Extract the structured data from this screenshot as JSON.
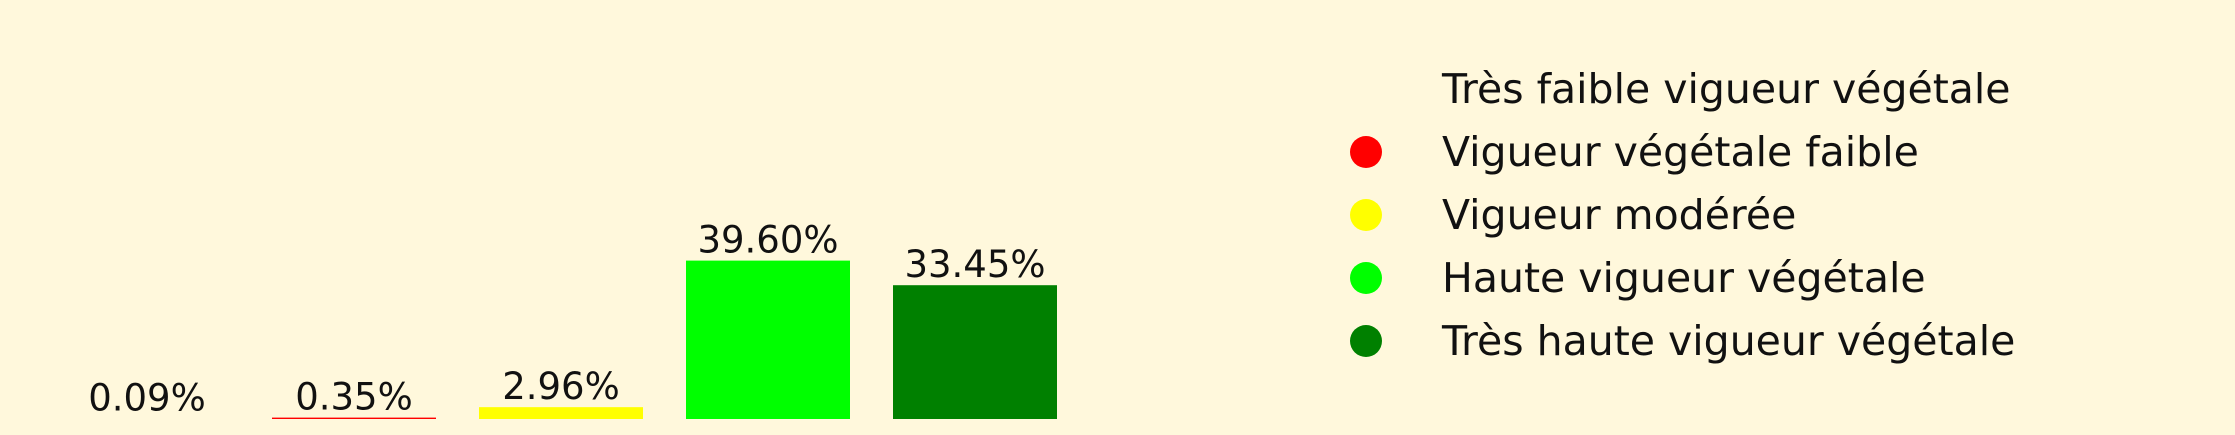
{
  "chart_data": {
    "type": "bar",
    "categories": [
      "Très faible vigueur végétale",
      "Vigueur végétale faible",
      "Vigueur modérée",
      "Haute vigueur végétale",
      "Très haute vigueur végétale"
    ],
    "values": [
      0.09,
      0.35,
      2.96,
      39.6,
      33.45
    ],
    "value_labels": [
      "0.09%",
      "0.35%",
      "2.96%",
      "39.60%",
      "33.45%"
    ],
    "colors": [
      "#FFF8DC",
      "#FF0000",
      "#FFFF00",
      "#00FF00",
      "#008000"
    ],
    "title": "",
    "xlabel": "",
    "ylabel": "",
    "ylim": [
      0,
      40
    ],
    "grid": false,
    "legend": {
      "placement": "right",
      "entries": [
        "Très faible vigueur végétale",
        "Vigueur végétale faible",
        "Vigueur modérée",
        "Haute vigueur végétale",
        "Très haute vigueur végétale"
      ]
    }
  }
}
